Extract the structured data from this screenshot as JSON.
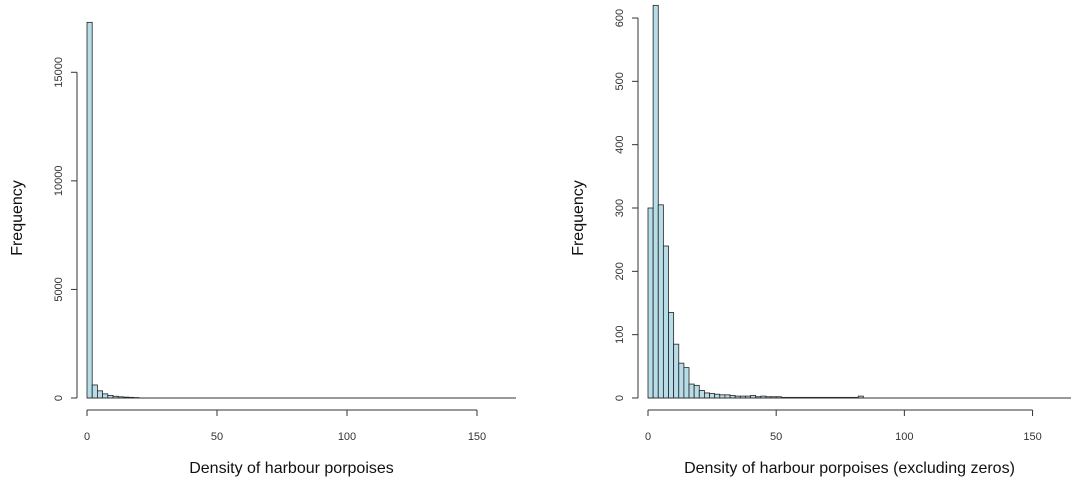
{
  "chart_data": [
    {
      "type": "bar",
      "title": "",
      "xlabel": "Density of harbour porpoises",
      "ylabel": "Frequency",
      "xlim": [
        0,
        165
      ],
      "ylim": [
        0,
        17500
      ],
      "xticks": [
        0,
        50,
        100,
        150
      ],
      "yticks": [
        0,
        5000,
        10000,
        15000
      ],
      "bin_width": 2,
      "bin_start": 0,
      "frequencies": [
        17300,
        600,
        330,
        190,
        120,
        80,
        55,
        40,
        30,
        20
      ],
      "bar_color": "#b7dde8",
      "grid": false
    },
    {
      "type": "bar",
      "title": "",
      "xlabel": "Density of harbour porpoises (excluding zeros)",
      "ylabel": "Frequency",
      "xlim": [
        0,
        165
      ],
      "ylim": [
        0,
        600
      ],
      "xticks": [
        0,
        50,
        100,
        150
      ],
      "yticks": [
        0,
        100,
        200,
        300,
        400,
        500,
        600
      ],
      "bin_width": 2,
      "bin_start": 0,
      "frequencies": [
        300,
        620,
        305,
        240,
        135,
        85,
        55,
        48,
        22,
        20,
        12,
        8,
        7,
        6,
        5,
        5,
        4,
        3,
        3,
        3,
        4,
        2,
        3,
        2,
        2,
        2,
        1,
        1,
        1,
        1,
        1,
        1,
        1,
        1,
        1,
        1,
        1,
        1,
        1,
        1,
        1,
        3
      ],
      "bar_color": "#b7dde8",
      "grid": false
    }
  ]
}
